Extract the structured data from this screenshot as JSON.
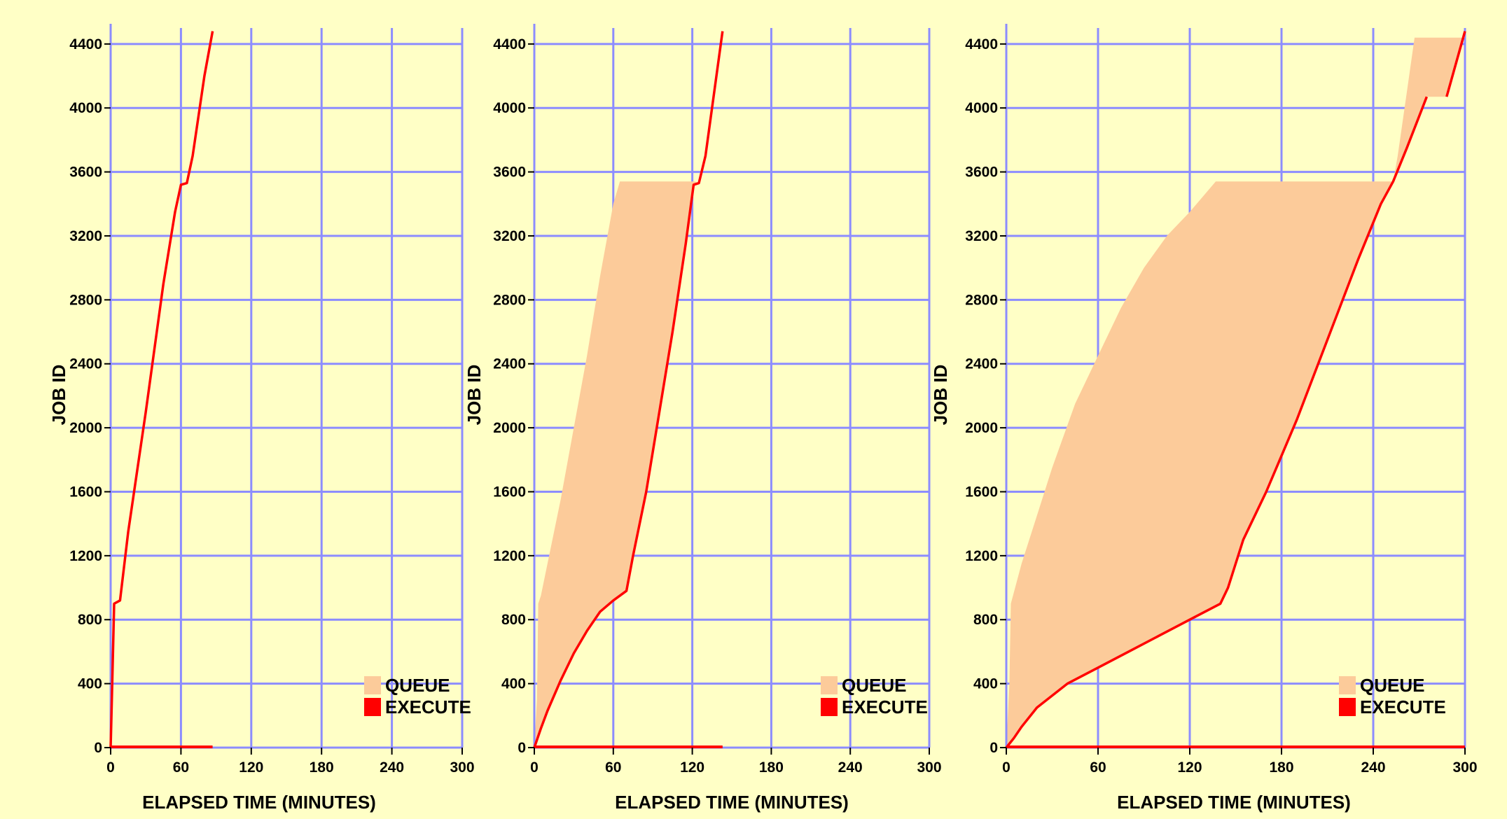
{
  "colors": {
    "background": "#FFFFC6",
    "grid": "#8C8CFF",
    "queue": "#FCCB9A",
    "execute": "#FF0000"
  },
  "legend": {
    "queue_label": "QUEUE",
    "execute_label": "EXECUTE",
    "placement": "bottom-right"
  },
  "chart_data": [
    {
      "type": "area",
      "xlabel": "ELAPSED TIME (MINUTES)",
      "ylabel": "JOB ID",
      "xlim": [
        0,
        300
      ],
      "ylim": [
        0,
        4500
      ],
      "xticks": [
        0,
        60,
        120,
        180,
        240,
        300
      ],
      "yticks": [
        0,
        400,
        800,
        1200,
        1600,
        2000,
        2400,
        2800,
        3200,
        3600,
        4000,
        4400
      ],
      "grid": true,
      "series": [
        {
          "name": "QUEUE",
          "upper": [
            [
              0,
              0
            ],
            [
              1,
              300
            ],
            [
              3,
              900
            ],
            [
              8,
              920
            ],
            [
              15,
              1350
            ],
            [
              30,
              2100
            ],
            [
              45,
              2900
            ],
            [
              55,
              3350
            ],
            [
              60,
              3520
            ],
            [
              65,
              3530
            ],
            [
              70,
              3700
            ],
            [
              80,
              4200
            ],
            [
              87,
              4480
            ]
          ],
          "lower": [
            [
              0,
              0
            ],
            [
              1,
              300
            ],
            [
              3,
              900
            ],
            [
              8,
              920
            ],
            [
              15,
              1350
            ],
            [
              30,
              2100
            ],
            [
              45,
              2900
            ],
            [
              55,
              3350
            ],
            [
              60,
              3520
            ],
            [
              65,
              3530
            ],
            [
              70,
              3700
            ],
            [
              80,
              4200
            ],
            [
              87,
              4480
            ]
          ]
        },
        {
          "name": "EXECUTE",
          "line": [
            [
              0,
              0
            ],
            [
              1,
              300
            ],
            [
              3,
              900
            ],
            [
              8,
              920
            ],
            [
              15,
              1350
            ],
            [
              30,
              2100
            ],
            [
              45,
              2900
            ],
            [
              55,
              3350
            ],
            [
              60,
              3520
            ],
            [
              65,
              3530
            ],
            [
              70,
              3700
            ],
            [
              80,
              4200
            ],
            [
              87,
              4480
            ]
          ],
          "baseline_x": [
            0,
            87
          ]
        }
      ]
    },
    {
      "type": "area",
      "xlabel": "ELAPSED TIME (MINUTES)",
      "ylabel": "JOB ID",
      "xlim": [
        0,
        300
      ],
      "ylim": [
        0,
        4500
      ],
      "xticks": [
        0,
        60,
        120,
        180,
        240,
        300
      ],
      "yticks": [
        0,
        400,
        800,
        1200,
        1600,
        2000,
        2400,
        2800,
        3200,
        3600,
        4000,
        4400
      ],
      "grid": true,
      "series": [
        {
          "name": "QUEUE",
          "upper": [
            [
              0,
              0
            ],
            [
              2,
              300
            ],
            [
              3,
              900
            ],
            [
              5,
              950
            ],
            [
              10,
              1150
            ],
            [
              20,
              1550
            ],
            [
              30,
              2000
            ],
            [
              40,
              2450
            ],
            [
              50,
              2950
            ],
            [
              60,
              3400
            ],
            [
              65,
              3540
            ],
            [
              122,
              3540
            ],
            [
              125,
              3530
            ],
            [
              130,
              3700
            ],
            [
              143,
              4480
            ]
          ],
          "lower": [
            [
              0,
              0
            ],
            [
              5,
              120
            ],
            [
              10,
              230
            ],
            [
              20,
              420
            ],
            [
              30,
              590
            ],
            [
              40,
              730
            ],
            [
              50,
              850
            ],
            [
              60,
              920
            ],
            [
              70,
              980
            ],
            [
              75,
              1200
            ],
            [
              85,
              1600
            ],
            [
              95,
              2100
            ],
            [
              105,
              2600
            ],
            [
              115,
              3150
            ],
            [
              121,
              3520
            ],
            [
              125,
              3530
            ],
            [
              130,
              3700
            ],
            [
              143,
              4480
            ]
          ]
        },
        {
          "name": "EXECUTE",
          "line": [
            [
              0,
              0
            ],
            [
              5,
              120
            ],
            [
              10,
              230
            ],
            [
              20,
              420
            ],
            [
              30,
              590
            ],
            [
              40,
              730
            ],
            [
              50,
              850
            ],
            [
              60,
              920
            ],
            [
              70,
              980
            ],
            [
              75,
              1200
            ],
            [
              85,
              1600
            ],
            [
              95,
              2100
            ],
            [
              105,
              2600
            ],
            [
              115,
              3150
            ],
            [
              121,
              3520
            ],
            [
              125,
              3530
            ],
            [
              130,
              3700
            ],
            [
              143,
              4480
            ]
          ],
          "baseline_x": [
            0,
            143
          ]
        }
      ]
    },
    {
      "type": "area",
      "xlabel": "ELAPSED TIME (MINUTES)",
      "ylabel": "JOB ID",
      "xlim": [
        0,
        300
      ],
      "ylim": [
        0,
        4500
      ],
      "xticks": [
        0,
        60,
        120,
        180,
        240,
        300
      ],
      "yticks": [
        0,
        400,
        800,
        1200,
        1600,
        2000,
        2400,
        2800,
        3200,
        3600,
        4000,
        4400
      ],
      "grid": true,
      "series": [
        {
          "name": "QUEUE",
          "upper": [
            [
              0,
              0
            ],
            [
              2,
              400
            ],
            [
              3,
              900
            ],
            [
              10,
              1150
            ],
            [
              20,
              1450
            ],
            [
              30,
              1750
            ],
            [
              45,
              2150
            ],
            [
              60,
              2450
            ],
            [
              75,
              2750
            ],
            [
              90,
              3000
            ],
            [
              105,
              3200
            ],
            [
              120,
              3350
            ],
            [
              137,
              3540
            ],
            [
              253,
              3540
            ],
            [
              256,
              3700
            ],
            [
              262,
              4100
            ],
            [
              267,
              4440
            ],
            [
              300,
              4440
            ]
          ],
          "lower": [
            [
              0,
              0
            ],
            [
              5,
              60
            ],
            [
              10,
              130
            ],
            [
              20,
              250
            ],
            [
              40,
              400
            ],
            [
              60,
              500
            ],
            [
              80,
              600
            ],
            [
              100,
              700
            ],
            [
              120,
              800
            ],
            [
              140,
              900
            ],
            [
              145,
              1000
            ],
            [
              155,
              1300
            ],
            [
              170,
              1600
            ],
            [
              190,
              2050
            ],
            [
              210,
              2550
            ],
            [
              230,
              3050
            ],
            [
              245,
              3400
            ],
            [
              253,
              3540
            ],
            [
              262,
              3750
            ],
            [
              275,
              4070
            ],
            [
              288,
              4070
            ],
            [
              300,
              4480
            ]
          ]
        },
        {
          "name": "EXECUTE",
          "line": [
            [
              0,
              0
            ],
            [
              5,
              60
            ],
            [
              10,
              130
            ],
            [
              20,
              250
            ],
            [
              40,
              400
            ],
            [
              60,
              500
            ],
            [
              80,
              600
            ],
            [
              100,
              700
            ],
            [
              120,
              800
            ],
            [
              140,
              900
            ],
            [
              145,
              1000
            ],
            [
              155,
              1300
            ],
            [
              170,
              1600
            ],
            [
              190,
              2050
            ],
            [
              210,
              2550
            ],
            [
              230,
              3050
            ],
            [
              245,
              3400
            ],
            [
              253,
              3540
            ],
            [
              262,
              3750
            ],
            [
              275,
              4070
            ]
          ],
          "line2": [
            [
              288,
              4070
            ],
            [
              300,
              4480
            ]
          ],
          "baseline_x": [
            0,
            300
          ]
        }
      ]
    }
  ]
}
